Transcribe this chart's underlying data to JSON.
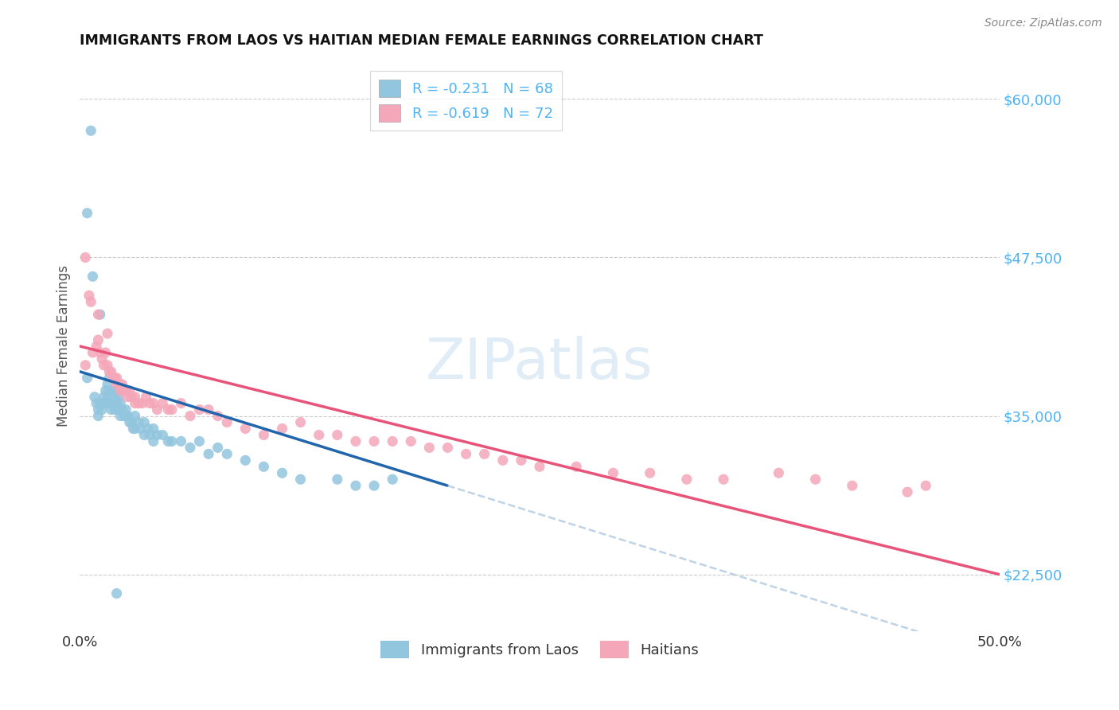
{
  "title": "IMMIGRANTS FROM LAOS VS HAITIAN MEDIAN FEMALE EARNINGS CORRELATION CHART",
  "source": "Source: ZipAtlas.com",
  "ylabel": "Median Female Earnings",
  "xlim": [
    0.0,
    0.5
  ],
  "ylim": [
    18000,
    63000
  ],
  "ytick_vals": [
    22500,
    35000,
    47500,
    60000
  ],
  "ytick_labels": [
    "$22,500",
    "$35,000",
    "$47,500",
    "$60,000"
  ],
  "xtick_vals": [
    0.0,
    0.1,
    0.2,
    0.3,
    0.4,
    0.5
  ],
  "xtick_labels": [
    "0.0%",
    "",
    "",
    "",
    "",
    "50.0%"
  ],
  "background_color": "#ffffff",
  "grid_color": "#cccccc",
  "legend_labels": [
    "Immigrants from Laos",
    "Haitians"
  ],
  "r_laos": -0.231,
  "n_laos": 68,
  "r_haitian": -0.619,
  "n_haitian": 72,
  "laos_color": "#92c5de",
  "haitian_color": "#f4a7b9",
  "laos_line_color": "#2166ac",
  "haitian_line_color": "#e8537a",
  "tick_label_color": "#4db3f5",
  "laos_scatter_x": [
    0.004,
    0.006,
    0.008,
    0.009,
    0.01,
    0.01,
    0.011,
    0.012,
    0.013,
    0.013,
    0.014,
    0.014,
    0.015,
    0.015,
    0.016,
    0.016,
    0.017,
    0.017,
    0.018,
    0.018,
    0.019,
    0.019,
    0.02,
    0.02,
    0.021,
    0.021,
    0.022,
    0.022,
    0.023,
    0.024,
    0.025,
    0.025,
    0.026,
    0.027,
    0.028,
    0.029,
    0.03,
    0.03,
    0.032,
    0.033,
    0.035,
    0.035,
    0.037,
    0.038,
    0.04,
    0.04,
    0.042,
    0.045,
    0.048,
    0.05,
    0.055,
    0.06,
    0.065,
    0.07,
    0.075,
    0.08,
    0.09,
    0.1,
    0.11,
    0.12,
    0.14,
    0.15,
    0.16,
    0.17,
    0.004,
    0.007,
    0.011,
    0.02
  ],
  "laos_scatter_y": [
    38000,
    57500,
    36500,
    36000,
    35500,
    35000,
    36000,
    35500,
    36500,
    36000,
    37000,
    36000,
    37500,
    36500,
    38000,
    37000,
    36000,
    35500,
    37000,
    36000,
    36500,
    35500,
    37000,
    36000,
    36500,
    35500,
    36000,
    35000,
    35500,
    35000,
    35500,
    35000,
    35000,
    34500,
    34500,
    34000,
    35000,
    34000,
    34500,
    34000,
    34500,
    33500,
    34000,
    33500,
    34000,
    33000,
    33500,
    33500,
    33000,
    33000,
    33000,
    32500,
    33000,
    32000,
    32500,
    32000,
    31500,
    31000,
    30500,
    30000,
    30000,
    29500,
    29500,
    30000,
    51000,
    46000,
    43000,
    21000
  ],
  "haitian_scatter_x": [
    0.003,
    0.005,
    0.007,
    0.009,
    0.01,
    0.011,
    0.012,
    0.013,
    0.014,
    0.015,
    0.016,
    0.017,
    0.018,
    0.019,
    0.02,
    0.02,
    0.021,
    0.022,
    0.023,
    0.024,
    0.025,
    0.026,
    0.027,
    0.028,
    0.03,
    0.03,
    0.032,
    0.034,
    0.036,
    0.038,
    0.04,
    0.042,
    0.045,
    0.048,
    0.05,
    0.055,
    0.06,
    0.065,
    0.07,
    0.075,
    0.08,
    0.09,
    0.1,
    0.11,
    0.12,
    0.13,
    0.14,
    0.15,
    0.16,
    0.17,
    0.18,
    0.19,
    0.2,
    0.21,
    0.22,
    0.23,
    0.24,
    0.25,
    0.27,
    0.29,
    0.31,
    0.33,
    0.35,
    0.38,
    0.4,
    0.42,
    0.45,
    0.46,
    0.003,
    0.006,
    0.01,
    0.015
  ],
  "haitian_scatter_y": [
    39000,
    44500,
    40000,
    40500,
    41000,
    40000,
    39500,
    39000,
    40000,
    39000,
    38500,
    38500,
    38000,
    38000,
    37500,
    38000,
    37500,
    37000,
    37500,
    37000,
    37000,
    36500,
    37000,
    36500,
    36500,
    36000,
    36000,
    36000,
    36500,
    36000,
    36000,
    35500,
    36000,
    35500,
    35500,
    36000,
    35000,
    35500,
    35500,
    35000,
    34500,
    34000,
    33500,
    34000,
    34500,
    33500,
    33500,
    33000,
    33000,
    33000,
    33000,
    32500,
    32500,
    32000,
    32000,
    31500,
    31500,
    31000,
    31000,
    30500,
    30500,
    30000,
    30000,
    30500,
    30000,
    29500,
    29000,
    29500,
    47500,
    44000,
    43000,
    41500
  ],
  "laos_line_x0": 0.0,
  "laos_line_y0": 38500,
  "laos_line_x1": 0.2,
  "laos_line_y1": 29500,
  "haitian_line_x0": 0.0,
  "haitian_line_y0": 40500,
  "haitian_line_x1": 0.5,
  "haitian_line_y1": 22500
}
